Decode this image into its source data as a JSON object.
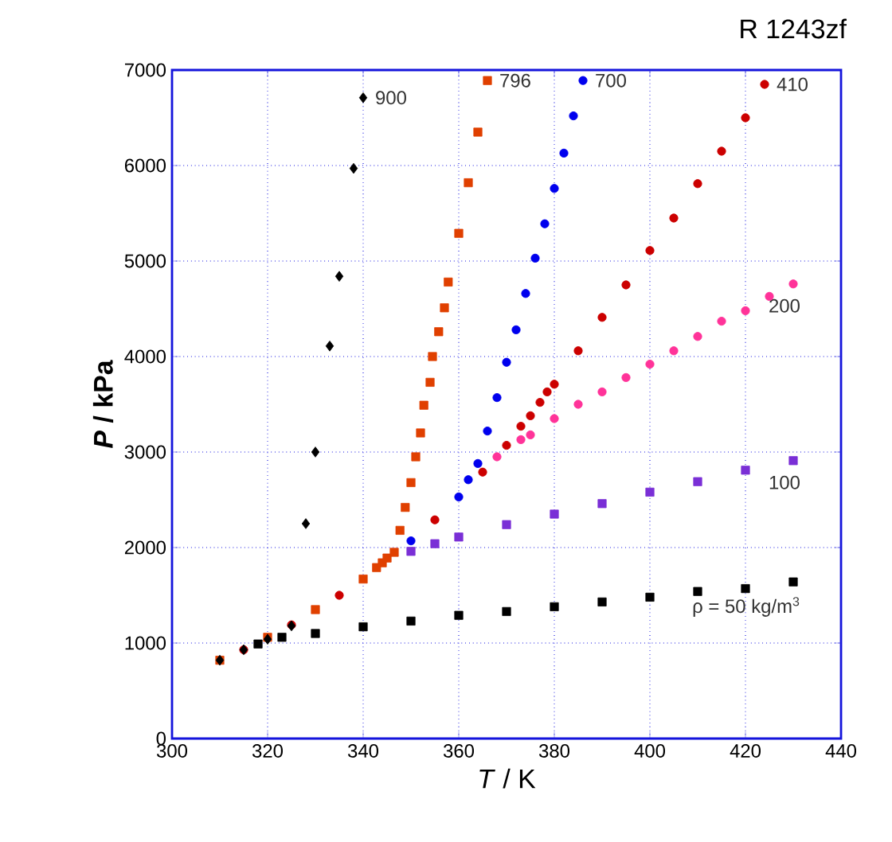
{
  "chart_data": {
    "type": "scatter",
    "title": "R 1243zf",
    "xlabel": "*T* / K",
    "ylabel": "*P* / kPa",
    "xlim": [
      300,
      440
    ],
    "xticks": [
      300,
      320,
      340,
      360,
      380,
      400,
      420,
      440
    ],
    "ylim": [
      0,
      7000
    ],
    "yticks": [
      0,
      1000,
      2000,
      3000,
      4000,
      5000,
      6000,
      7000
    ],
    "grid": true,
    "series": [
      {
        "name": "ρ = 50 kg/m$^{3}$",
        "color": "#000000",
        "marker": "square",
        "x": [
          318,
          323,
          330,
          340,
          350,
          360,
          370,
          380,
          390,
          400,
          410,
          420,
          430
        ],
        "values": [
          990,
          1060,
          1100,
          1170,
          1230,
          1290,
          1330,
          1380,
          1430,
          1480,
          1540,
          1570,
          1640
        ]
      },
      {
        "name": "100",
        "color": "#7a2fd6",
        "marker": "square",
        "x": [
          350,
          355,
          360,
          370,
          380,
          390,
          400,
          410,
          420,
          430
        ],
        "values": [
          1960,
          2040,
          2110,
          2240,
          2350,
          2460,
          2580,
          2690,
          2810,
          2910
        ]
      },
      {
        "name": "200",
        "color": "#ff3399",
        "marker": "circle",
        "x": [
          368,
          373,
          375,
          380,
          385,
          390,
          395,
          400,
          405,
          410,
          415,
          420,
          425,
          430
        ],
        "values": [
          2950,
          3130,
          3180,
          3350,
          3500,
          3630,
          3780,
          3920,
          4060,
          4210,
          4370,
          4480,
          4630,
          4760
        ]
      },
      {
        "name": "410",
        "color": "#cc0000",
        "marker": "circle",
        "x": [
          315,
          325,
          335,
          355,
          365,
          370,
          373,
          375,
          377,
          378.5,
          380,
          385,
          390,
          395,
          400,
          405,
          410,
          415,
          420,
          424
        ],
        "values": [
          930,
          1190,
          1500,
          2290,
          2790,
          3070,
          3270,
          3380,
          3520,
          3630,
          3710,
          4060,
          4410,
          4750,
          5110,
          5450,
          5810,
          6150,
          6500,
          6850
        ]
      },
      {
        "name": "700",
        "color": "#0000ee",
        "marker": "circle",
        "x": [
          350,
          360,
          362,
          364,
          366,
          368,
          370,
          372,
          374,
          376,
          378,
          380,
          382,
          384,
          386
        ],
        "values": [
          2070,
          2530,
          2710,
          2880,
          3220,
          3570,
          3940,
          4280,
          4660,
          5030,
          5390,
          5760,
          6130,
          6520,
          6890
        ]
      },
      {
        "name": "796",
        "color": "#e04000",
        "marker": "square",
        "x": [
          310,
          320,
          330,
          340,
          342.8,
          344,
          345,
          346.5,
          347.7,
          348.8,
          350,
          351,
          352,
          352.7,
          354,
          354.5,
          355.8,
          357,
          357.8,
          360,
          362,
          364,
          366
        ],
        "values": [
          820,
          1060,
          1350,
          1670,
          1790,
          1840,
          1890,
          1950,
          2180,
          2420,
          2680,
          2950,
          3200,
          3490,
          3730,
          4000,
          4260,
          4510,
          4780,
          5290,
          5820,
          6350,
          6890
        ]
      },
      {
        "name": "900",
        "color": "#000000",
        "marker": "diamond",
        "x": [
          310,
          315,
          320,
          325,
          328,
          330,
          333,
          335,
          338,
          340
        ],
        "values": [
          820,
          930,
          1040,
          1180,
          2250,
          3000,
          4110,
          4840,
          5970,
          6710
        ]
      }
    ]
  }
}
